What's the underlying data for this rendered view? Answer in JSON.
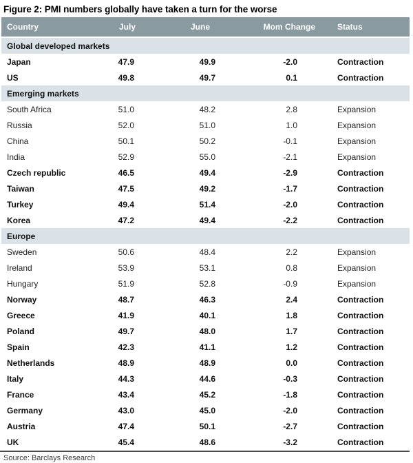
{
  "title": "Figure 2: PMI numbers globally have taken a turn for the worse",
  "source": "Source: Barclays Research",
  "colors": {
    "header_bg": "#8A9AA1",
    "header_text": "#FFFFFF",
    "section_bg": "#DAE2E7",
    "rule_color": "#4A4A4A",
    "contraction_text": "#0F0F0F",
    "expansion_text": "#222222"
  },
  "chart_data": {
    "type": "table",
    "title": "Figure 2: PMI numbers globally have taken a turn for the worse",
    "columns": [
      "Country",
      "July",
      "June",
      "Mom Change",
      "Status"
    ],
    "sections": [
      {
        "name": "Global developed markets",
        "rows": [
          [
            "Japan",
            "47.9",
            "49.9",
            "-2.0",
            "Contraction"
          ],
          [
            "US",
            "49.8",
            "49.7",
            "0.1",
            "Contraction"
          ]
        ]
      },
      {
        "name": "Emerging markets",
        "rows": [
          [
            "South Africa",
            "51.0",
            "48.2",
            "2.8",
            "Expansion"
          ],
          [
            "Russia",
            "52.0",
            "51.0",
            "1.0",
            "Expansion"
          ],
          [
            "China",
            "50.1",
            "50.2",
            "-0.1",
            "Expansion"
          ],
          [
            "India",
            "52.9",
            "55.0",
            "-2.1",
            "Expansion"
          ],
          [
            "Czech republic",
            "46.5",
            "49.4",
            "-2.9",
            "Contraction"
          ],
          [
            "Taiwan",
            "47.5",
            "49.2",
            "-1.7",
            "Contraction"
          ],
          [
            "Turkey",
            "49.4",
            "51.4",
            "-2.0",
            "Contraction"
          ],
          [
            "Korea",
            "47.2",
            "49.4",
            "-2.2",
            "Contraction"
          ]
        ]
      },
      {
        "name": "Europe",
        "rows": [
          [
            "Sweden",
            "50.6",
            "48.4",
            "2.2",
            "Expansion"
          ],
          [
            "Ireland",
            "53.9",
            "53.1",
            "0.8",
            "Expansion"
          ],
          [
            "Hungary",
            "51.9",
            "52.8",
            "-0.9",
            "Expansion"
          ],
          [
            "Norway",
            "48.7",
            "46.3",
            "2.4",
            "Contraction"
          ],
          [
            "Greece",
            "41.9",
            "40.1",
            "1.8",
            "Contraction"
          ],
          [
            "Poland",
            "49.7",
            "48.0",
            "1.7",
            "Contraction"
          ],
          [
            "Spain",
            "42.3",
            "41.1",
            "1.2",
            "Contraction"
          ],
          [
            "Netherlands",
            "48.9",
            "48.9",
            "0.0",
            "Contraction"
          ],
          [
            "Italy",
            "44.3",
            "44.6",
            "-0.3",
            "Contraction"
          ],
          [
            "France",
            "43.4",
            "45.2",
            "-1.8",
            "Contraction"
          ],
          [
            "Germany",
            "43.0",
            "45.0",
            "-2.0",
            "Contraction"
          ],
          [
            "Austria",
            "47.4",
            "50.1",
            "-2.7",
            "Contraction"
          ],
          [
            "UK",
            "45.4",
            "48.6",
            "-3.2",
            "Contraction"
          ]
        ]
      }
    ]
  }
}
